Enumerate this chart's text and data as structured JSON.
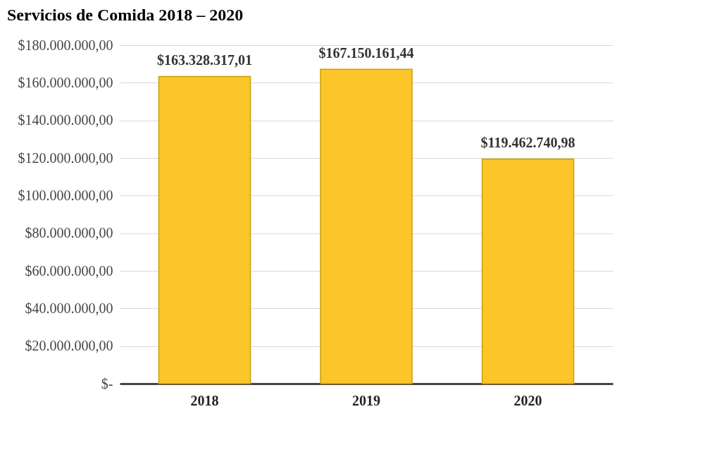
{
  "chart_data": {
    "type": "bar",
    "title": "Servicios de Comida 2018 – 2020",
    "categories": [
      "2018",
      "2019",
      "2020"
    ],
    "values": [
      163328317.01,
      167150161.44,
      119462740.98
    ],
    "color": "#fcc52a",
    "value_labels": [
      "$163.328.317,01",
      "$167.150.161,44",
      "$119.462.740,98"
    ],
    "ylim": [
      0,
      180000000
    ],
    "yticks": [
      {
        "value": 0,
        "label": "$-"
      },
      {
        "value": 20000000,
        "label": "$20.000.000,00"
      },
      {
        "value": 40000000,
        "label": "$40.000.000,00"
      },
      {
        "value": 60000000,
        "label": "$60.000.000,00"
      },
      {
        "value": 80000000,
        "label": "$80.000.000,00"
      },
      {
        "value": 100000000,
        "label": "$100.000.000,00"
      },
      {
        "value": 120000000,
        "label": "$120.000.000,00"
      },
      {
        "value": 140000000,
        "label": "$140.000.000,00"
      },
      {
        "value": 160000000,
        "label": "$160.000.000,00"
      },
      {
        "value": 180000000,
        "label": "$180.000.000,00"
      }
    ],
    "grid": "y"
  }
}
